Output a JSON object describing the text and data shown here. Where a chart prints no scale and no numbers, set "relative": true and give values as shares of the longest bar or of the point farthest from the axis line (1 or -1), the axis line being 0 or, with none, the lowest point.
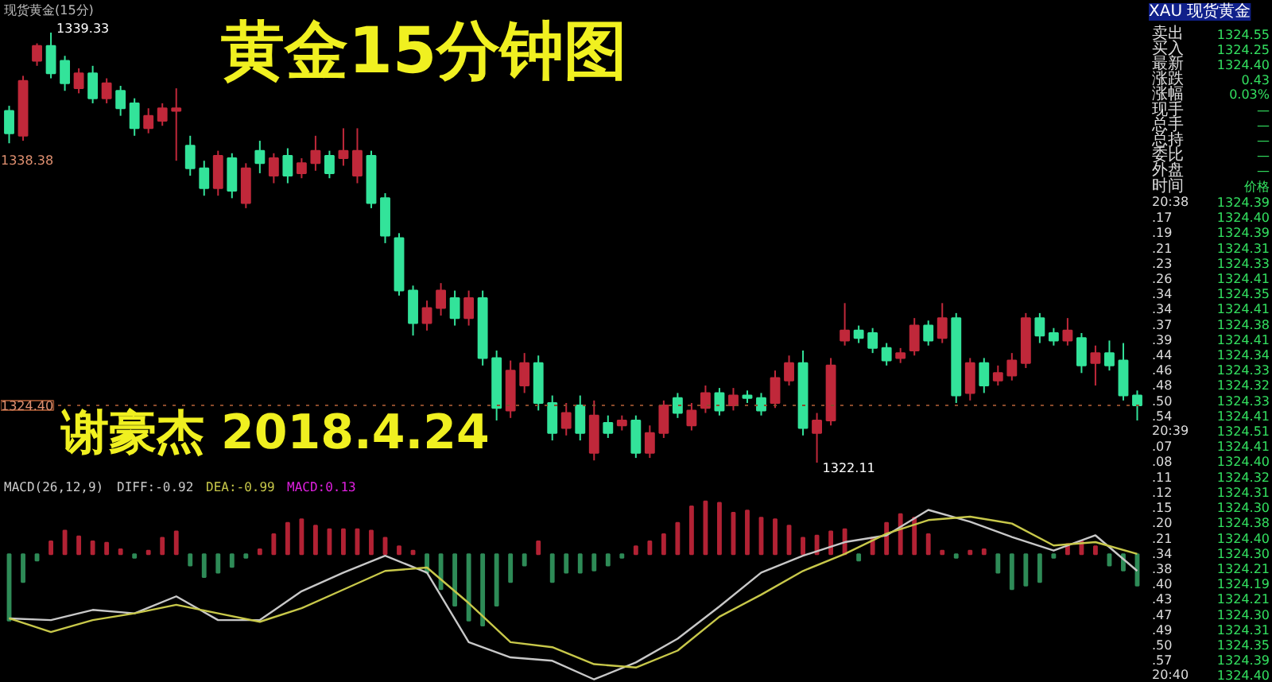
{
  "chart_data": [
    {
      "type": "candlestick",
      "title": "黄金15分钟图",
      "subtitle": "现货黄金(15分)",
      "tick_labels": false,
      "grid": false,
      "categories": [
        null,
        null,
        null,
        null,
        null,
        null,
        null,
        null,
        null,
        null,
        null,
        null,
        null,
        null,
        null,
        null,
        null,
        null,
        null,
        null,
        null,
        null,
        null,
        null,
        null,
        null,
        null,
        null,
        null,
        null,
        null,
        null,
        null,
        null,
        null,
        null,
        null,
        null,
        null,
        null,
        null,
        null,
        null,
        null,
        null,
        null,
        null,
        null,
        null,
        null,
        null,
        null,
        null,
        null,
        null,
        null,
        null,
        null,
        null,
        null,
        null,
        null,
        null,
        null,
        null,
        null,
        null,
        null,
        null,
        null,
        null,
        null,
        null,
        null,
        null,
        null,
        null,
        null,
        null,
        null,
        null,
        null
      ],
      "ohlc": [
        [
          1336.2,
          1336.4,
          1334.9,
          1335.3
        ],
        [
          1335.2,
          1337.6,
          1335.0,
          1337.4
        ],
        [
          1338.2,
          1338.9,
          1338.0,
          1338.8
        ],
        [
          1338.8,
          1339.33,
          1337.5,
          1337.7
        ],
        [
          1338.2,
          1338.4,
          1337.0,
          1337.3
        ],
        [
          1337.1,
          1337.9,
          1336.9,
          1337.7
        ],
        [
          1337.7,
          1338.0,
          1336.5,
          1336.7
        ],
        [
          1336.7,
          1337.5,
          1336.5,
          1337.3
        ],
        [
          1337.0,
          1337.2,
          1336.0,
          1336.3
        ],
        [
          1336.5,
          1336.7,
          1335.2,
          1335.5
        ],
        [
          1335.5,
          1336.3,
          1335.3,
          1336.0
        ],
        [
          1335.8,
          1336.5,
          1335.6,
          1336.3
        ],
        [
          1336.2,
          1337.1,
          1334.2,
          1336.3
        ],
        [
          1334.8,
          1335.2,
          1333.6,
          1333.9
        ],
        [
          1333.9,
          1334.2,
          1332.8,
          1333.1
        ],
        [
          1333.1,
          1334.6,
          1332.8,
          1334.4
        ],
        [
          1334.3,
          1334.5,
          1332.7,
          1333.0
        ],
        [
          1332.5,
          1334.1,
          1332.3,
          1333.9
        ],
        [
          1334.6,
          1335.0,
          1333.7,
          1334.1
        ],
        [
          1333.6,
          1334.5,
          1333.3,
          1334.3
        ],
        [
          1334.4,
          1334.7,
          1333.3,
          1333.6
        ],
        [
          1333.7,
          1334.3,
          1333.5,
          1334.1
        ],
        [
          1334.1,
          1335.2,
          1333.8,
          1334.6
        ],
        [
          1334.4,
          1334.6,
          1333.5,
          1333.7
        ],
        [
          1334.3,
          1335.5,
          1334.0,
          1334.6
        ],
        [
          1333.6,
          1335.5,
          1333.3,
          1334.6
        ],
        [
          1334.4,
          1334.6,
          1332.3,
          1332.5
        ],
        [
          1332.7,
          1332.9,
          1330.9,
          1331.2
        ],
        [
          1331.1,
          1331.3,
          1328.8,
          1329.0
        ],
        [
          1329.0,
          1329.2,
          1327.2,
          1327.7
        ],
        [
          1327.7,
          1328.6,
          1327.4,
          1328.3
        ],
        [
          1328.3,
          1329.3,
          1328.0,
          1329.0
        ],
        [
          1328.7,
          1329.0,
          1327.6,
          1327.9
        ],
        [
          1327.9,
          1329.0,
          1327.6,
          1328.7
        ],
        [
          1328.7,
          1329.0,
          1326.0,
          1326.3
        ],
        [
          1326.3,
          1326.6,
          1323.8,
          1324.3
        ],
        [
          1324.2,
          1326.2,
          1323.9,
          1325.8
        ],
        [
          1325.2,
          1326.5,
          1324.9,
          1326.1
        ],
        [
          1326.1,
          1326.4,
          1324.2,
          1324.5
        ],
        [
          1324.5,
          1324.8,
          1323.0,
          1323.3
        ],
        [
          1323.5,
          1324.5,
          1323.2,
          1324.1
        ],
        [
          1324.4,
          1324.8,
          1323.0,
          1323.3
        ],
        [
          1322.5,
          1324.6,
          1322.2,
          1324.0
        ],
        [
          1323.7,
          1324.0,
          1323.1,
          1323.3
        ],
        [
          1323.6,
          1324.0,
          1323.4,
          1323.8
        ],
        [
          1323.8,
          1324.0,
          1322.3,
          1322.5
        ],
        [
          1322.5,
          1323.6,
          1322.3,
          1323.3
        ],
        [
          1323.3,
          1324.6,
          1323.1,
          1324.4
        ],
        [
          1324.7,
          1324.9,
          1323.9,
          1324.1
        ],
        [
          1323.6,
          1324.5,
          1323.4,
          1324.2
        ],
        [
          1324.3,
          1325.2,
          1324.1,
          1324.9
        ],
        [
          1324.9,
          1325.1,
          1324.0,
          1324.2
        ],
        [
          1324.4,
          1325.1,
          1324.2,
          1324.8
        ],
        [
          1324.8,
          1325.0,
          1324.5,
          1324.7
        ],
        [
          1324.7,
          1324.9,
          1324.0,
          1324.2
        ],
        [
          1324.5,
          1325.8,
          1324.3,
          1325.5
        ],
        [
          1325.4,
          1326.4,
          1325.2,
          1326.1
        ],
        [
          1326.1,
          1326.6,
          1323.2,
          1323.5
        ],
        [
          1323.3,
          1324.1,
          1322.11,
          1323.8
        ],
        [
          1323.8,
          1326.3,
          1323.6,
          1326.0
        ],
        [
          1327.0,
          1328.5,
          1326.8,
          1327.4
        ],
        [
          1327.4,
          1327.6,
          1326.9,
          1327.1
        ],
        [
          1327.3,
          1327.5,
          1326.5,
          1326.7
        ],
        [
          1326.7,
          1326.9,
          1326.0,
          1326.2
        ],
        [
          1326.3,
          1326.7,
          1326.1,
          1326.5
        ],
        [
          1326.6,
          1327.9,
          1326.4,
          1327.6
        ],
        [
          1327.6,
          1327.8,
          1326.8,
          1327.0
        ],
        [
          1327.1,
          1328.5,
          1326.9,
          1327.9
        ],
        [
          1327.9,
          1328.1,
          1324.5,
          1324.8
        ],
        [
          1324.9,
          1326.3,
          1324.6,
          1326.1
        ],
        [
          1326.1,
          1326.3,
          1324.9,
          1325.2
        ],
        [
          1325.4,
          1326.0,
          1325.2,
          1325.7
        ],
        [
          1325.6,
          1326.5,
          1325.4,
          1326.2
        ],
        [
          1326.1,
          1328.1,
          1325.9,
          1327.9
        ],
        [
          1327.9,
          1328.1,
          1326.9,
          1327.2
        ],
        [
          1327.3,
          1327.5,
          1326.8,
          1327.0
        ],
        [
          1327.0,
          1327.9,
          1326.8,
          1327.4
        ],
        [
          1327.1,
          1327.3,
          1325.7,
          1326.0
        ],
        [
          1326.1,
          1326.8,
          1325.2,
          1326.5
        ],
        [
          1326.5,
          1327.0,
          1325.8,
          1326.0
        ],
        [
          1326.2,
          1326.9,
          1324.6,
          1324.8
        ],
        [
          1324.8,
          1325.0,
          1323.8,
          1324.4
        ]
      ],
      "ref_lines": [
        {
          "axis": "y",
          "value": 1324.4,
          "label": "1324.40",
          "color": "#8b4a2b",
          "line_style": "dotted"
        }
      ],
      "annotations": [
        "1339.33",
        "1322.11",
        "1338.38",
        "谢豪杰 2018.4.24"
      ]
    },
    {
      "type": "bar",
      "title": "MACD(26,12,9)",
      "relative": true,
      "tick_labels": false,
      "grid": false,
      "categories": [
        null,
        null,
        null,
        null,
        null,
        null,
        null,
        null,
        null,
        null,
        null,
        null,
        null,
        null,
        null,
        null,
        null,
        null,
        null,
        null,
        null,
        null,
        null,
        null,
        null,
        null,
        null,
        null,
        null,
        null,
        null,
        null,
        null,
        null,
        null,
        null,
        null,
        null,
        null,
        null,
        null,
        null,
        null,
        null,
        null,
        null,
        null,
        null,
        null,
        null,
        null,
        null,
        null,
        null,
        null,
        null,
        null,
        null,
        null,
        null,
        null,
        null,
        null,
        null,
        null,
        null,
        null,
        null,
        null,
        null,
        null,
        null,
        null,
        null,
        null,
        null,
        null,
        null,
        null,
        null,
        null,
        null
      ],
      "series": [
        {
          "name": "MACD:0.13",
          "values": [
            -0.93,
            -0.39,
            -0.09,
            0.18,
            0.33,
            0.25,
            0.18,
            0.16,
            0.07,
            -0.05,
            0.05,
            0.23,
            0.32,
            -0.16,
            -0.32,
            -0.26,
            -0.18,
            -0.05,
            0.07,
            0.28,
            0.44,
            0.49,
            0.4,
            0.35,
            0.35,
            0.35,
            0.33,
            0.23,
            0.11,
            0.05,
            -0.26,
            -0.49,
            -0.72,
            -0.93,
            -1.0,
            -0.72,
            -0.39,
            -0.16,
            0.18,
            -0.39,
            -0.26,
            -0.26,
            -0.23,
            -0.16,
            -0.05,
            0.11,
            0.18,
            0.28,
            0.44,
            0.67,
            0.74,
            0.72,
            0.58,
            0.61,
            0.51,
            0.49,
            0.4,
            0.23,
            0.26,
            0.32,
            0.35,
            -0.09,
            0.23,
            0.44,
            0.56,
            0.51,
            0.28,
            0.05,
            -0.05,
            0.05,
            0.07,
            -0.26,
            -0.49,
            -0.44,
            -0.39,
            -0.05,
            0.14,
            0.18,
            0.11,
            -0.16,
            -0.23,
            -0.44
          ],
          "colors": [
            "#2e8b57",
            "#2e8b57",
            "#2e8b57",
            "#b22234",
            "#b22234",
            "#b22234",
            "#b22234",
            "#b22234",
            "#b22234",
            "#2e8b57",
            "#b22234",
            "#b22234",
            "#b22234",
            "#2e8b57",
            "#2e8b57",
            "#2e8b57",
            "#2e8b57",
            "#2e8b57",
            "#b22234",
            "#b22234",
            "#b22234",
            "#b22234",
            "#b22234",
            "#b22234",
            "#b22234",
            "#b22234",
            "#b22234",
            "#b22234",
            "#b22234",
            "#b22234",
            "#2e8b57",
            "#2e8b57",
            "#2e8b57",
            "#2e8b57",
            "#2e8b57",
            "#2e8b57",
            "#2e8b57",
            "#2e8b57",
            "#b22234",
            "#2e8b57",
            "#2e8b57",
            "#2e8b57",
            "#2e8b57",
            "#2e8b57",
            "#2e8b57",
            "#b22234",
            "#b22234",
            "#b22234",
            "#b22234",
            "#b22234",
            "#b22234",
            "#b22234",
            "#b22234",
            "#b22234",
            "#b22234",
            "#b22234",
            "#b22234",
            "#b22234",
            "#b22234",
            "#b22234",
            "#b22234",
            "#2e8b57",
            "#b22234",
            "#b22234",
            "#b22234",
            "#b22234",
            "#b22234",
            "#b22234",
            "#2e8b57",
            "#b22234",
            "#b22234",
            "#2e8b57",
            "#2e8b57",
            "#2e8b57",
            "#2e8b57",
            "#2e8b57",
            "#b22234",
            "#b22234",
            "#b22234",
            "#2e8b57",
            "#2e8b57",
            "#2e8b57"
          ]
        }
      ]
    },
    {
      "type": "line",
      "relative": true,
      "categories": [
        null,
        null,
        null,
        null,
        null,
        null,
        null,
        null,
        null,
        null,
        null,
        null,
        null,
        null,
        null,
        null,
        null,
        null,
        null,
        null,
        null,
        null,
        null,
        null,
        null,
        null,
        null,
        null
      ],
      "series": [
        {
          "name": "DIFF:-0.92",
          "color": "#c8c8c8",
          "values": [
            0.36,
            0.35,
            0.41,
            0.39,
            0.49,
            0.35,
            0.35,
            0.52,
            0.63,
            0.73,
            0.63,
            0.22,
            0.13,
            0.11,
            0.0,
            0.1,
            0.24,
            0.43,
            0.63,
            0.73,
            0.81,
            0.85,
            1.0,
            0.93,
            0.84,
            0.76,
            0.85,
            0.64
          ]
        },
        {
          "name": "DEA:-0.99",
          "color": "#c8c84a",
          "values": [
            0.36,
            0.28,
            0.35,
            0.39,
            0.44,
            0.39,
            0.34,
            0.42,
            0.53,
            0.64,
            0.66,
            0.45,
            0.22,
            0.19,
            0.09,
            0.07,
            0.17,
            0.37,
            0.5,
            0.64,
            0.74,
            0.86,
            0.94,
            0.96,
            0.92,
            0.79,
            0.81,
            0.74
          ]
        }
      ]
    },
    {
      "type": "other",
      "title": "XAU 现货黄金",
      "annotations": [
        "卖出",
        "1324.55",
        "买入",
        "1324.25",
        "最新",
        "1324.40",
        "涨跌",
        "0.43",
        "涨幅",
        "0.03%",
        "现手",
        "—",
        "总手",
        "—",
        "总持",
        "—",
        "委比",
        "—",
        "外盘",
        "—",
        "时间",
        "价格",
        "20:38",
        "1324.39",
        ".17",
        "1324.40",
        ".19",
        "1324.39",
        ".21",
        "1324.31",
        ".23",
        "1324.33",
        ".26",
        "1324.41",
        ".34",
        "1324.35",
        ".34",
        "1324.41",
        ".37",
        "1324.38",
        ".39",
        "1324.41",
        ".44",
        "1324.34",
        ".46",
        "1324.33",
        ".48",
        "1324.32",
        ".50",
        "1324.33",
        ".54",
        "1324.41",
        "20:39",
        "1324.51",
        ".07",
        "1324.41",
        ".08",
        "1324.40",
        ".11",
        "1324.32",
        ".12",
        "1324.31",
        ".15",
        "1324.30",
        ".20",
        "1324.38",
        ".21",
        "1324.40",
        ".34",
        "1324.30",
        ".38",
        "1324.21",
        ".40",
        "1324.19",
        ".43",
        "1324.21",
        ".47",
        "1324.30",
        ".49",
        "1324.31",
        ".50",
        "1324.35",
        ".57",
        "1324.39",
        "20:40",
        "1324.40"
      ]
    }
  ]
}
